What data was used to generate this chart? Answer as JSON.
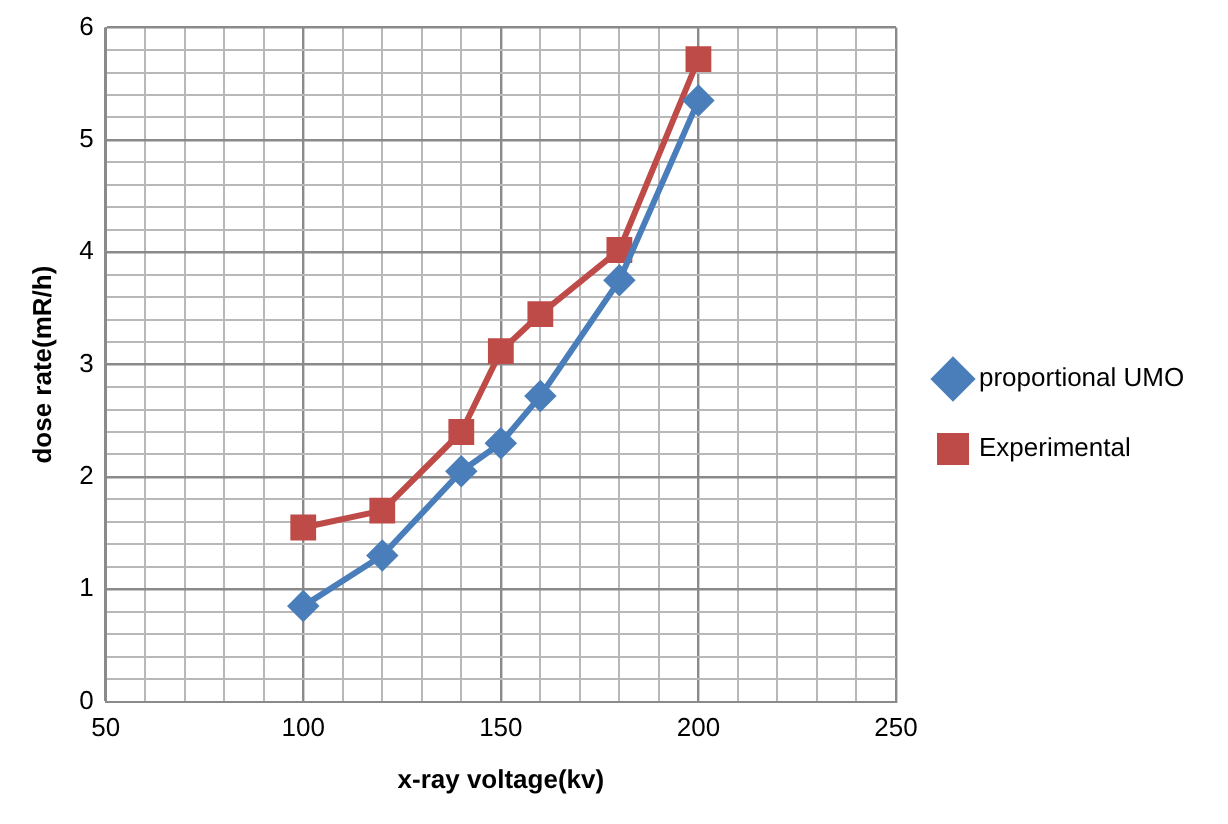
{
  "chart_data": {
    "type": "line",
    "xlabel": "x-ray voltage(kv)",
    "ylabel": "dose rate(mR/h)",
    "xlim": [
      50,
      250
    ],
    "xticks": [
      50,
      {
        "value": 60,
        "label": null
      },
      {
        "value": 70,
        "label": null
      },
      {
        "value": 80,
        "label": null
      },
      {
        "value": 90,
        "label": null
      },
      100,
      {
        "value": 110,
        "label": null
      },
      {
        "value": 120,
        "label": null
      },
      {
        "value": 130,
        "label": null
      },
      {
        "value": 140,
        "label": null
      },
      150,
      {
        "value": 160,
        "label": null
      },
      {
        "value": 170,
        "label": null
      },
      {
        "value": 180,
        "label": null
      },
      {
        "value": 190,
        "label": null
      },
      200,
      {
        "value": 210,
        "label": null
      },
      {
        "value": 220,
        "label": null
      },
      {
        "value": 230,
        "label": null
      },
      {
        "value": 240,
        "label": null
      },
      250
    ],
    "ylim": [
      0,
      6
    ],
    "yticks": [
      0,
      {
        "value": 0.2,
        "label": null
      },
      {
        "value": 0.4,
        "label": null
      },
      {
        "value": 0.6,
        "label": null
      },
      {
        "value": 0.8,
        "label": null
      },
      1,
      {
        "value": 1.2,
        "label": null
      },
      {
        "value": 1.4,
        "label": null
      },
      {
        "value": 1.6,
        "label": null
      },
      {
        "value": 1.8,
        "label": null
      },
      2,
      {
        "value": 2.2,
        "label": null
      },
      {
        "value": 2.4,
        "label": null
      },
      {
        "value": 2.6,
        "label": null
      },
      {
        "value": 2.8,
        "label": null
      },
      3,
      {
        "value": 3.2,
        "label": null
      },
      {
        "value": 3.4,
        "label": null
      },
      {
        "value": 3.6,
        "label": null
      },
      {
        "value": 3.8,
        "label": null
      },
      4,
      {
        "value": 4.2,
        "label": null
      },
      {
        "value": 4.4,
        "label": null
      },
      {
        "value": 4.6,
        "label": null
      },
      {
        "value": 4.8,
        "label": null
      },
      5,
      {
        "value": 5.2,
        "label": null
      },
      {
        "value": 5.4,
        "label": null
      },
      {
        "value": 5.6,
        "label": null
      },
      {
        "value": 5.8,
        "label": null
      },
      6
    ],
    "grid": true,
    "legend": "right",
    "series": [
      {
        "name": "proportional UMO",
        "color": "#4a7ebb",
        "marker": "diamond",
        "x": [
          100,
          120,
          140,
          150,
          160,
          180,
          200
        ],
        "values": [
          0.85,
          1.3,
          2.05,
          2.3,
          2.72,
          3.75,
          5.35
        ]
      },
      {
        "name": "Experimental",
        "color": "#be4b48",
        "marker": "square",
        "x": [
          100,
          120,
          140,
          150,
          160,
          180,
          200
        ],
        "values": [
          1.55,
          1.7,
          2.4,
          3.12,
          3.45,
          4.02,
          5.72
        ]
      }
    ]
  }
}
